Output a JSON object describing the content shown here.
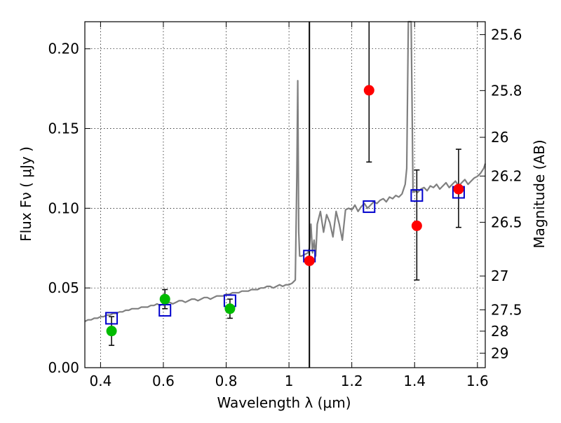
{
  "chart_data": {
    "type": "scatter",
    "title": "",
    "xlabel": "Wavelength  λ (μm)",
    "ylabel": "Flux  Fν  ( μJy )",
    "y2label": "Magnitude (AB)",
    "xlim": [
      0.35,
      1.625
    ],
    "ylim": [
      0.0,
      0.217
    ],
    "grid": true,
    "x_ticks": [
      0.4,
      0.6,
      0.8,
      1.0,
      1.2,
      1.4,
      1.6
    ],
    "x_tick_labels": [
      "0.4",
      "0.6",
      "0.8",
      "1",
      "1.2",
      "1.4",
      "1.6"
    ],
    "y_ticks": [
      0.0,
      0.05,
      0.1,
      0.15,
      0.2
    ],
    "y_tick_labels": [
      "0.00",
      "0.05",
      "0.10",
      "0.15",
      "0.20"
    ],
    "y2_ticks": [
      {
        "label": "25.6",
        "flux": 0.2089
      },
      {
        "label": "25.8",
        "flux": 0.1738
      },
      {
        "label": "26",
        "flux": 0.1445
      },
      {
        "label": "26.2",
        "flux": 0.1202
      },
      {
        "label": "26.5",
        "flux": 0.0912
      },
      {
        "label": "27",
        "flux": 0.0575
      },
      {
        "label": "27.5",
        "flux": 0.0363
      },
      {
        "label": "28",
        "flux": 0.0229
      },
      {
        "label": "29",
        "flux": 0.0091
      }
    ],
    "vertical_line_x": 1.065,
    "series": [
      {
        "kind": "spectrum",
        "color": "#808080",
        "x": [
          0.35,
          0.36,
          0.37,
          0.38,
          0.39,
          0.4,
          0.41,
          0.42,
          0.43,
          0.44,
          0.45,
          0.46,
          0.47,
          0.48,
          0.49,
          0.5,
          0.51,
          0.52,
          0.53,
          0.54,
          0.55,
          0.56,
          0.57,
          0.58,
          0.59,
          0.6,
          0.61,
          0.62,
          0.63,
          0.64,
          0.65,
          0.66,
          0.67,
          0.68,
          0.69,
          0.7,
          0.71,
          0.72,
          0.73,
          0.74,
          0.75,
          0.76,
          0.77,
          0.78,
          0.79,
          0.8,
          0.81,
          0.82,
          0.83,
          0.84,
          0.85,
          0.86,
          0.87,
          0.88,
          0.89,
          0.9,
          0.91,
          0.92,
          0.93,
          0.94,
          0.95,
          0.96,
          0.97,
          0.98,
          0.99,
          1.0,
          1.01,
          1.02,
          1.025,
          1.028,
          1.031,
          1.034,
          1.04,
          1.05,
          1.06,
          1.065,
          1.07,
          1.075,
          1.08,
          1.085,
          1.09,
          1.1,
          1.11,
          1.12,
          1.13,
          1.14,
          1.15,
          1.16,
          1.17,
          1.18,
          1.19,
          1.2,
          1.21,
          1.22,
          1.23,
          1.24,
          1.25,
          1.26,
          1.27,
          1.28,
          1.29,
          1.3,
          1.31,
          1.32,
          1.33,
          1.34,
          1.35,
          1.36,
          1.37,
          1.375,
          1.38,
          1.383,
          1.386,
          1.389,
          1.395,
          1.4,
          1.41,
          1.42,
          1.43,
          1.44,
          1.45,
          1.46,
          1.47,
          1.48,
          1.49,
          1.5,
          1.51,
          1.52,
          1.53,
          1.54,
          1.55,
          1.56,
          1.57,
          1.58,
          1.59,
          1.6,
          1.61,
          1.62,
          1.625
        ],
        "y": [
          0.029,
          0.03,
          0.03,
          0.031,
          0.031,
          0.032,
          0.032,
          0.033,
          0.033,
          0.034,
          0.034,
          0.035,
          0.035,
          0.036,
          0.036,
          0.037,
          0.037,
          0.037,
          0.038,
          0.038,
          0.038,
          0.039,
          0.039,
          0.04,
          0.039,
          0.04,
          0.04,
          0.041,
          0.04,
          0.041,
          0.042,
          0.042,
          0.041,
          0.042,
          0.043,
          0.043,
          0.042,
          0.043,
          0.044,
          0.044,
          0.043,
          0.044,
          0.045,
          0.045,
          0.045,
          0.046,
          0.046,
          0.047,
          0.047,
          0.047,
          0.048,
          0.048,
          0.048,
          0.049,
          0.049,
          0.049,
          0.05,
          0.05,
          0.051,
          0.051,
          0.05,
          0.051,
          0.052,
          0.051,
          0.052,
          0.052,
          0.053,
          0.055,
          0.12,
          0.18,
          0.085,
          0.07,
          0.07,
          0.071,
          0.072,
          0.075,
          0.09,
          0.072,
          0.08,
          0.07,
          0.09,
          0.098,
          0.085,
          0.096,
          0.091,
          0.082,
          0.098,
          0.09,
          0.08,
          0.099,
          0.1,
          0.099,
          0.102,
          0.098,
          0.101,
          0.103,
          0.1,
          0.102,
          0.104,
          0.103,
          0.105,
          0.106,
          0.104,
          0.107,
          0.106,
          0.108,
          0.107,
          0.109,
          0.115,
          0.125,
          0.217,
          0.217,
          0.217,
          0.217,
          0.11,
          0.111,
          0.11,
          0.112,
          0.113,
          0.111,
          0.114,
          0.113,
          0.115,
          0.112,
          0.114,
          0.116,
          0.113,
          0.115,
          0.117,
          0.114,
          0.116,
          0.118,
          0.115,
          0.117,
          0.119,
          0.12,
          0.122,
          0.125,
          0.128
        ]
      },
      {
        "kind": "model-photometry",
        "marker": "open-square",
        "color": "#0000cc",
        "x": [
          0.435,
          0.605,
          0.812,
          1.065,
          1.255,
          1.407,
          1.54
        ],
        "y": [
          0.031,
          0.036,
          0.042,
          0.07,
          0.101,
          0.108,
          0.11
        ]
      },
      {
        "kind": "observed-optical",
        "marker": "filled-circle",
        "color": "#00bb00",
        "x": [
          0.435,
          0.605,
          0.812
        ],
        "y": [
          0.023,
          0.043,
          0.037
        ],
        "yerr": [
          0.009,
          0.006,
          0.006
        ]
      },
      {
        "kind": "observed-nir",
        "marker": "filled-circle",
        "color": "#ff0000",
        "x": [
          1.065,
          1.255,
          1.407,
          1.54
        ],
        "y": [
          0.067,
          0.174,
          0.089,
          0.112
        ],
        "yerr_low": [
          0.0,
          0.045,
          0.034,
          0.024
        ],
        "yerr_high": [
          0.0,
          0.043,
          0.035,
          0.025
        ]
      }
    ]
  }
}
